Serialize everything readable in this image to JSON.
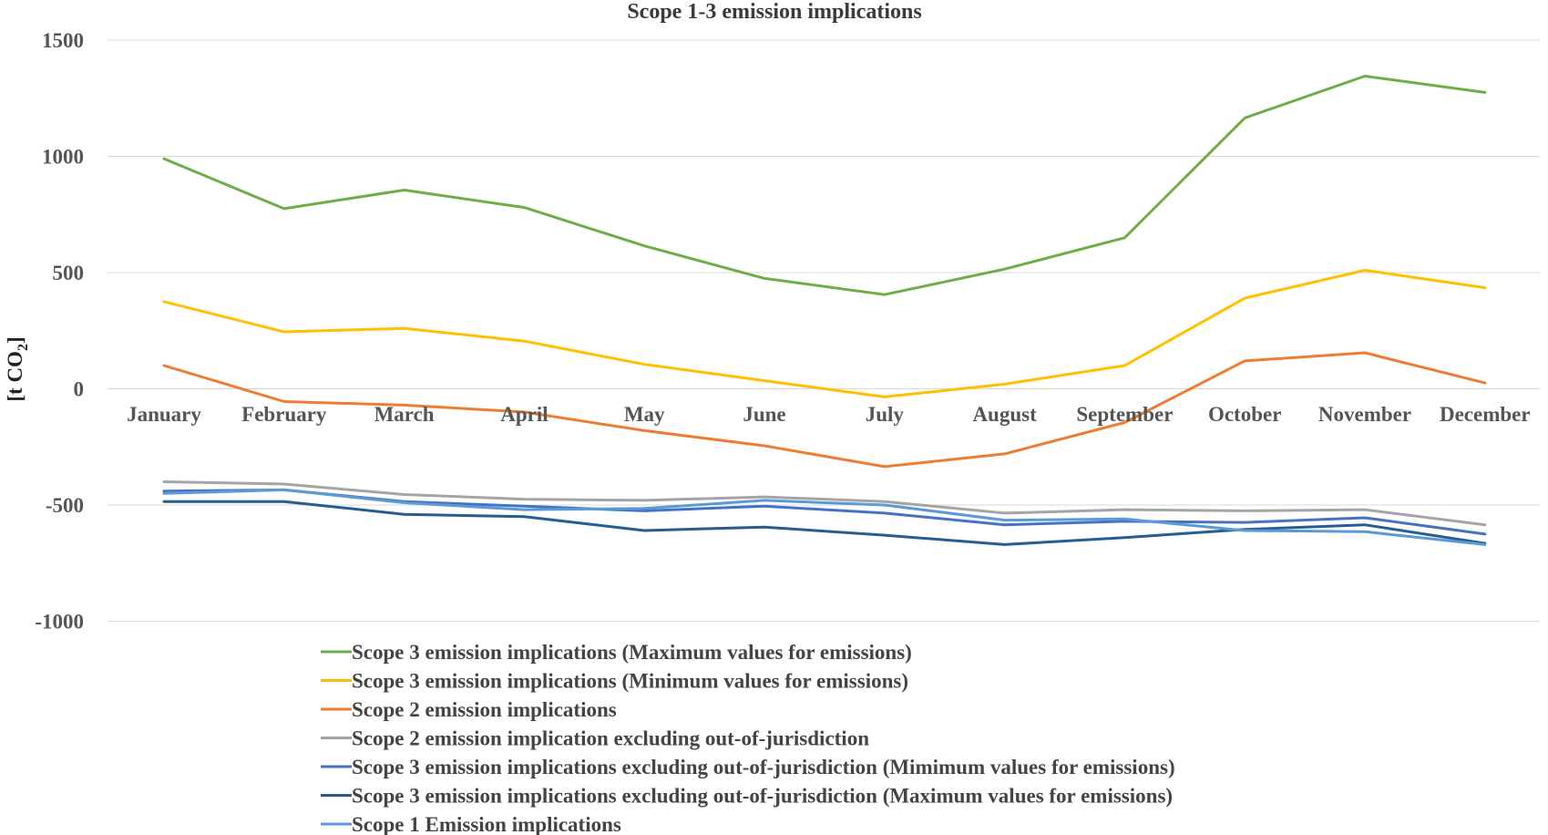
{
  "chart_data": {
    "type": "line",
    "title": "Scope 1-3 emission implications",
    "ylabel": "[t CO2]",
    "ylabel_main": "[t CO",
    "ylabel_sub": "2",
    "ylabel_end": "]",
    "ylim": [
      -1000,
      1500
    ],
    "yticks": [
      1500,
      1000,
      500,
      0,
      -500,
      -1000
    ],
    "ytick_labels": [
      "1500",
      "1000",
      "500",
      "0",
      "-500",
      "-1000"
    ],
    "grid": true,
    "legend_position": "bottom",
    "categories": [
      "January",
      "February",
      "March",
      "April",
      "May",
      "June",
      "July",
      "August",
      "September",
      "October",
      "November",
      "December"
    ],
    "series": [
      {
        "name": "Scope 3 emission implications (Maximum values for emissions)",
        "color": "#70ad47",
        "values": [
          990,
          775,
          855,
          780,
          615,
          475,
          405,
          515,
          650,
          1165,
          1345,
          1275
        ]
      },
      {
        "name": "Scope 3 emission implications (Minimum values for emissions)",
        "color": "#ffc000",
        "values": [
          375,
          245,
          260,
          205,
          105,
          35,
          -35,
          20,
          100,
          390,
          510,
          435
        ]
      },
      {
        "name": "Scope 2 emission implications",
        "color": "#ed7d31",
        "values": [
          100,
          -55,
          -70,
          -100,
          -180,
          -245,
          -335,
          -280,
          -145,
          120,
          155,
          25
        ]
      },
      {
        "name": "Scope 2 emission implication excluding out-of-jurisdiction",
        "color": "#a5a5a5",
        "values": [
          -400,
          -410,
          -455,
          -475,
          -480,
          -465,
          -485,
          -535,
          -520,
          -525,
          -520,
          -585
        ]
      },
      {
        "name": "Scope 3 emission implications excluding out-of-jurisdiction (Mimimum values for emissions)",
        "color": "#4472c4",
        "values": [
          -440,
          -435,
          -485,
          -505,
          -525,
          -505,
          -535,
          -585,
          -570,
          -575,
          -555,
          -625
        ]
      },
      {
        "name": "Scope 3 emission implications excluding out-of-jurisdiction (Maximum values for emissions)",
        "color": "#255e91",
        "values": [
          -485,
          -485,
          -540,
          -550,
          -610,
          -595,
          -630,
          -670,
          -640,
          -605,
          -585,
          -665
        ]
      },
      {
        "name": "Scope 1 Emission implications",
        "color": "#5b9bd5",
        "values": [
          -450,
          -435,
          -490,
          -520,
          -515,
          -480,
          -500,
          -565,
          -560,
          -610,
          -615,
          -670
        ]
      }
    ]
  }
}
